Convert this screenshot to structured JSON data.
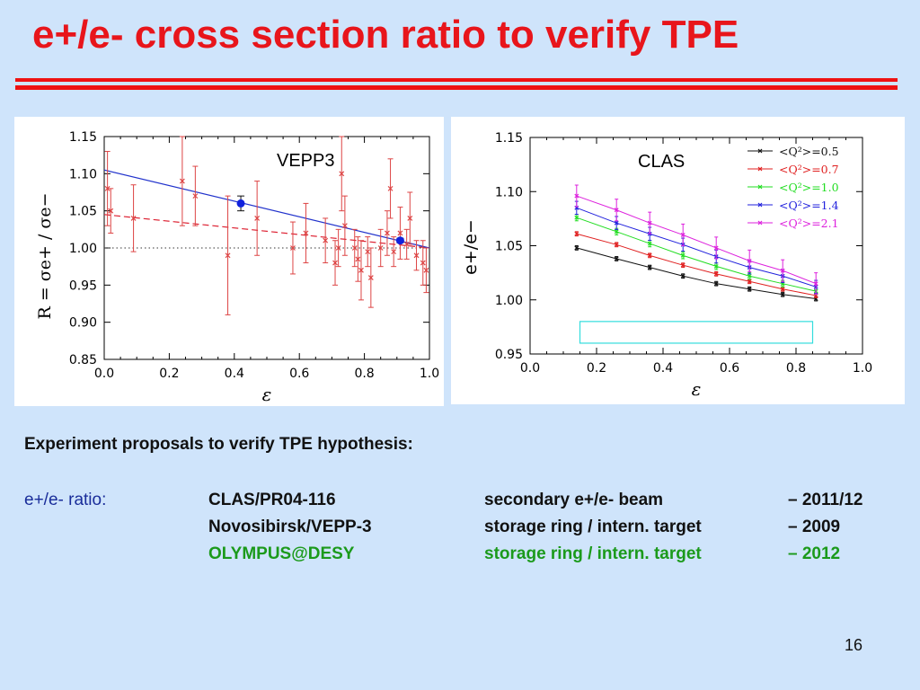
{
  "slide": {
    "title": "e+/e- cross section ratio to verify TPE",
    "page_number": "16"
  },
  "proposals": {
    "heading": "Experiment proposals to verify TPE hypothesis:",
    "ratio_label": "e+/e- ratio:",
    "rows": [
      {
        "experiment": "CLAS/PR04-116",
        "method": "secondary e+/e- beam",
        "year": "– 2011/12"
      },
      {
        "experiment": "Novosibirsk/VEPP-3",
        "method": "storage ring / intern. target",
        "year": "– 2009"
      },
      {
        "experiment": "OLYMPUS@DESY",
        "method": "storage ring / intern. target",
        "year": "– 2012"
      }
    ]
  },
  "colors": {
    "title": "#e8151b",
    "background": "#cfe4fb",
    "highlight_row": "#1b9a1b",
    "ratio_label": "#1a2d9a"
  },
  "chart_data": [
    {
      "type": "scatter",
      "label": "VEPP3",
      "xlabel": "ε",
      "ylabel": "R = σe+ / σe−",
      "xlim": [
        0.0,
        1.0
      ],
      "ylim": [
        0.85,
        1.15
      ],
      "xticks": [
        "0.0",
        "0.2",
        "0.4",
        "0.6",
        "0.8",
        "1.0"
      ],
      "yticks": [
        "0.85",
        "0.90",
        "0.95",
        "1.00",
        "1.05",
        "1.10",
        "1.15"
      ],
      "red_points": [
        {
          "x": 0.01,
          "y": 1.08,
          "err": 0.05
        },
        {
          "x": 0.02,
          "y": 1.05,
          "err": 0.03
        },
        {
          "x": 0.09,
          "y": 1.04,
          "err": 0.045
        },
        {
          "x": 0.24,
          "y": 1.09,
          "err": 0.06
        },
        {
          "x": 0.28,
          "y": 1.07,
          "err": 0.04
        },
        {
          "x": 0.38,
          "y": 0.99,
          "err": 0.08
        },
        {
          "x": 0.47,
          "y": 1.04,
          "err": 0.05
        },
        {
          "x": 0.58,
          "y": 1.0,
          "err": 0.035
        },
        {
          "x": 0.62,
          "y": 1.02,
          "err": 0.04
        },
        {
          "x": 0.68,
          "y": 1.01,
          "err": 0.03
        },
        {
          "x": 0.71,
          "y": 0.98,
          "err": 0.03
        },
        {
          "x": 0.72,
          "y": 1.0,
          "err": 0.025
        },
        {
          "x": 0.73,
          "y": 1.1,
          "err": 0.05
        },
        {
          "x": 0.74,
          "y": 1.03,
          "err": 0.04
        },
        {
          "x": 0.77,
          "y": 1.0,
          "err": 0.025
        },
        {
          "x": 0.78,
          "y": 0.985,
          "err": 0.03
        },
        {
          "x": 0.79,
          "y": 0.97,
          "err": 0.04
        },
        {
          "x": 0.81,
          "y": 0.995,
          "err": 0.02
        },
        {
          "x": 0.82,
          "y": 0.96,
          "err": 0.04
        },
        {
          "x": 0.85,
          "y": 1.0,
          "err": 0.025
        },
        {
          "x": 0.87,
          "y": 1.02,
          "err": 0.03
        },
        {
          "x": 0.88,
          "y": 1.08,
          "err": 0.04
        },
        {
          "x": 0.89,
          "y": 0.995,
          "err": 0.02
        },
        {
          "x": 0.91,
          "y": 1.02,
          "err": 0.035
        },
        {
          "x": 0.93,
          "y": 1.005,
          "err": 0.02
        },
        {
          "x": 0.94,
          "y": 1.04,
          "err": 0.035
        },
        {
          "x": 0.96,
          "y": 0.99,
          "err": 0.02
        },
        {
          "x": 0.98,
          "y": 0.98,
          "err": 0.03
        },
        {
          "x": 0.99,
          "y": 0.97,
          "err": 0.03
        }
      ],
      "blue_points": [
        {
          "x": 0.42,
          "y": 1.06,
          "err": 0.01
        },
        {
          "x": 0.91,
          "y": 1.01,
          "err": 0.003
        }
      ],
      "blue_line": {
        "x": [
          0.0,
          1.0
        ],
        "y": [
          1.105,
          1.0
        ]
      },
      "red_dashed_line": {
        "x": [
          0.0,
          1.0
        ],
        "y": [
          1.045,
          1.0
        ]
      },
      "dotted_line_y": 1.0
    },
    {
      "type": "line",
      "label": "CLAS",
      "xlabel": "ε",
      "ylabel": "e+/e−",
      "xlim": [
        0.0,
        1.0
      ],
      "ylim": [
        0.95,
        1.15
      ],
      "xticks": [
        "0.0",
        "0.2",
        "0.4",
        "0.6",
        "0.8",
        "1.0"
      ],
      "yticks": [
        "0.95",
        "1.00",
        "1.05",
        "1.10",
        "1.15"
      ],
      "x": [
        0.14,
        0.26,
        0.36,
        0.46,
        0.56,
        0.66,
        0.76,
        0.86
      ],
      "series": [
        {
          "name": "<Q²>=0.5",
          "color": "#111111",
          "values": [
            1.048,
            1.038,
            1.03,
            1.022,
            1.015,
            1.01,
            1.005,
            1.001
          ],
          "err": 0.002
        },
        {
          "name": "<Q²>=0.7",
          "color": "#e02020",
          "values": [
            1.061,
            1.051,
            1.041,
            1.032,
            1.024,
            1.017,
            1.01,
            1.004
          ],
          "err": 0.002
        },
        {
          "name": "<Q²>=1.0",
          "color": "#22dd22",
          "values": [
            1.076,
            1.063,
            1.052,
            1.041,
            1.031,
            1.022,
            1.015,
            1.008
          ],
          "err": 0.003
        },
        {
          "name": "<Q²>=1.4",
          "color": "#2222dd",
          "values": [
            1.085,
            1.071,
            1.061,
            1.051,
            1.04,
            1.03,
            1.022,
            1.012
          ],
          "err": 0.006
        },
        {
          "name": "<Q²>=2.1",
          "color": "#dd22dd",
          "values": [
            1.096,
            1.083,
            1.071,
            1.06,
            1.048,
            1.036,
            1.027,
            1.015
          ],
          "err": 0.01
        }
      ],
      "box": {
        "x": [
          0.15,
          0.85
        ],
        "y": [
          0.96,
          0.98
        ],
        "color": "#33dddd"
      }
    }
  ]
}
